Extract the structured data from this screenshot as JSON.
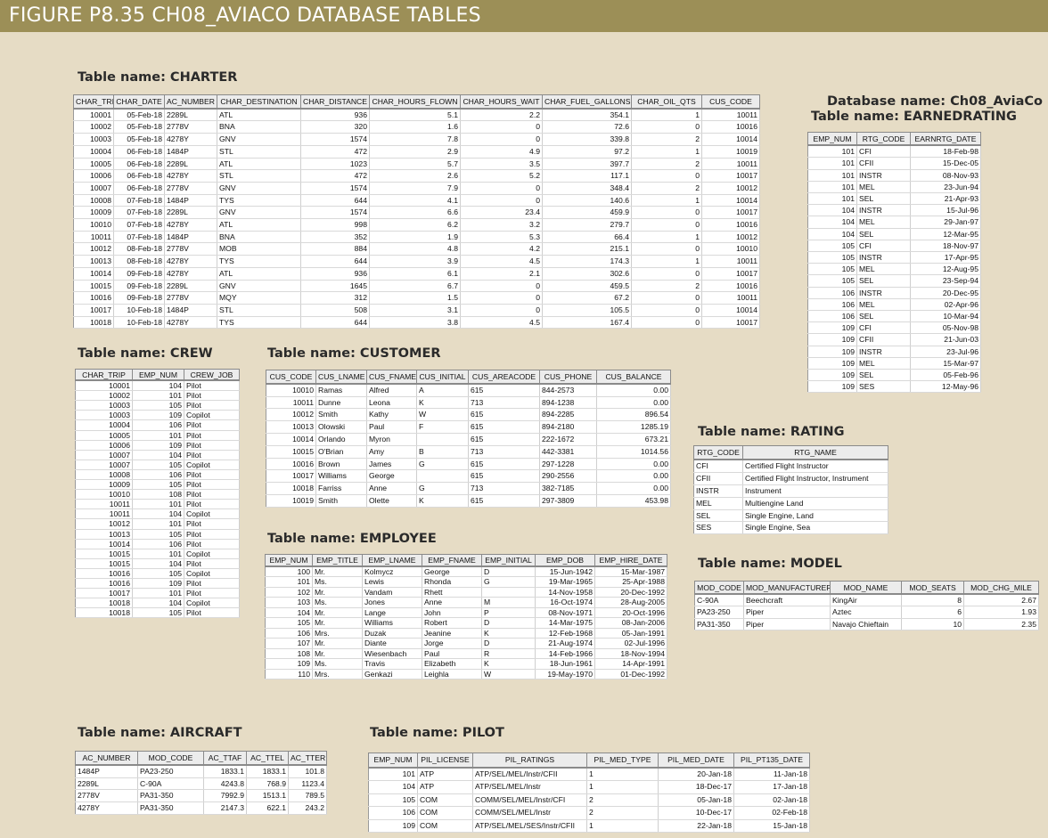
{
  "figure_title": "FIGURE P8.35  CH08_AVIACO DATABASE TABLES",
  "database_name": "Database name: Ch08_AviaCo",
  "tables": {
    "charter": {
      "title": "Table name: CHARTER",
      "columns": [
        "CHAR_TRIP",
        "CHAR_DATE",
        "AC_NUMBER",
        "CHAR_DESTINATION",
        "CHAR_DISTANCE",
        "CHAR_HOURS_FLOWN",
        "CHAR_HOURS_WAIT",
        "CHAR_FUEL_GALLONS",
        "CHAR_OIL_QTS",
        "CUS_CODE"
      ],
      "rows": [
        [
          "10001",
          "05-Feb-18",
          "2289L",
          "ATL",
          "936",
          "5.1",
          "2.2",
          "354.1",
          "1",
          "10011"
        ],
        [
          "10002",
          "05-Feb-18",
          "2778V",
          "BNA",
          "320",
          "1.6",
          "0",
          "72.6",
          "0",
          "10016"
        ],
        [
          "10003",
          "05-Feb-18",
          "4278Y",
          "GNV",
          "1574",
          "7.8",
          "0",
          "339.8",
          "2",
          "10014"
        ],
        [
          "10004",
          "06-Feb-18",
          "1484P",
          "STL",
          "472",
          "2.9",
          "4.9",
          "97.2",
          "1",
          "10019"
        ],
        [
          "10005",
          "06-Feb-18",
          "2289L",
          "ATL",
          "1023",
          "5.7",
          "3.5",
          "397.7",
          "2",
          "10011"
        ],
        [
          "10006",
          "06-Feb-18",
          "4278Y",
          "STL",
          "472",
          "2.6",
          "5.2",
          "117.1",
          "0",
          "10017"
        ],
        [
          "10007",
          "06-Feb-18",
          "2778V",
          "GNV",
          "1574",
          "7.9",
          "0",
          "348.4",
          "2",
          "10012"
        ],
        [
          "10008",
          "07-Feb-18",
          "1484P",
          "TYS",
          "644",
          "4.1",
          "0",
          "140.6",
          "1",
          "10014"
        ],
        [
          "10009",
          "07-Feb-18",
          "2289L",
          "GNV",
          "1574",
          "6.6",
          "23.4",
          "459.9",
          "0",
          "10017"
        ],
        [
          "10010",
          "07-Feb-18",
          "4278Y",
          "ATL",
          "998",
          "6.2",
          "3.2",
          "279.7",
          "0",
          "10016"
        ],
        [
          "10011",
          "07-Feb-18",
          "1484P",
          "BNA",
          "352",
          "1.9",
          "5.3",
          "66.4",
          "1",
          "10012"
        ],
        [
          "10012",
          "08-Feb-18",
          "2778V",
          "MOB",
          "884",
          "4.8",
          "4.2",
          "215.1",
          "0",
          "10010"
        ],
        [
          "10013",
          "08-Feb-18",
          "4278Y",
          "TYS",
          "644",
          "3.9",
          "4.5",
          "174.3",
          "1",
          "10011"
        ],
        [
          "10014",
          "09-Feb-18",
          "4278Y",
          "ATL",
          "936",
          "6.1",
          "2.1",
          "302.6",
          "0",
          "10017"
        ],
        [
          "10015",
          "09-Feb-18",
          "2289L",
          "GNV",
          "1645",
          "6.7",
          "0",
          "459.5",
          "2",
          "10016"
        ],
        [
          "10016",
          "09-Feb-18",
          "2778V",
          "MQY",
          "312",
          "1.5",
          "0",
          "67.2",
          "0",
          "10011"
        ],
        [
          "10017",
          "10-Feb-18",
          "1484P",
          "STL",
          "508",
          "3.1",
          "0",
          "105.5",
          "0",
          "10014"
        ],
        [
          "10018",
          "10-Feb-18",
          "4278Y",
          "TYS",
          "644",
          "3.8",
          "4.5",
          "167.4",
          "0",
          "10017"
        ]
      ]
    },
    "earnedrating": {
      "title": "Table name: EARNEDRATING",
      "columns": [
        "EMP_NUM",
        "RTG_CODE",
        "EARNRTG_DATE"
      ],
      "rows": [
        [
          "101",
          "CFI",
          "18-Feb-98"
        ],
        [
          "101",
          "CFII",
          "15-Dec-05"
        ],
        [
          "101",
          "INSTR",
          "08-Nov-93"
        ],
        [
          "101",
          "MEL",
          "23-Jun-94"
        ],
        [
          "101",
          "SEL",
          "21-Apr-93"
        ],
        [
          "104",
          "INSTR",
          "15-Jul-96"
        ],
        [
          "104",
          "MEL",
          "29-Jan-97"
        ],
        [
          "104",
          "SEL",
          "12-Mar-95"
        ],
        [
          "105",
          "CFI",
          "18-Nov-97"
        ],
        [
          "105",
          "INSTR",
          "17-Apr-95"
        ],
        [
          "105",
          "MEL",
          "12-Aug-95"
        ],
        [
          "105",
          "SEL",
          "23-Sep-94"
        ],
        [
          "106",
          "INSTR",
          "20-Dec-95"
        ],
        [
          "106",
          "MEL",
          "02-Apr-96"
        ],
        [
          "106",
          "SEL",
          "10-Mar-94"
        ],
        [
          "109",
          "CFI",
          "05-Nov-98"
        ],
        [
          "109",
          "CFII",
          "21-Jun-03"
        ],
        [
          "109",
          "INSTR",
          "23-Jul-96"
        ],
        [
          "109",
          "MEL",
          "15-Mar-97"
        ],
        [
          "109",
          "SEL",
          "05-Feb-96"
        ],
        [
          "109",
          "SES",
          "12-May-96"
        ]
      ]
    },
    "crew": {
      "title": "Table name: CREW",
      "columns": [
        "CHAR_TRIP",
        "EMP_NUM",
        "CREW_JOB"
      ],
      "rows": [
        [
          "10001",
          "104",
          "Pilot"
        ],
        [
          "10002",
          "101",
          "Pilot"
        ],
        [
          "10003",
          "105",
          "Pilot"
        ],
        [
          "10003",
          "109",
          "Copilot"
        ],
        [
          "10004",
          "106",
          "Pilot"
        ],
        [
          "10005",
          "101",
          "Pilot"
        ],
        [
          "10006",
          "109",
          "Pilot"
        ],
        [
          "10007",
          "104",
          "Pilot"
        ],
        [
          "10007",
          "105",
          "Copilot"
        ],
        [
          "10008",
          "106",
          "Pilot"
        ],
        [
          "10009",
          "105",
          "Pilot"
        ],
        [
          "10010",
          "108",
          "Pilot"
        ],
        [
          "10011",
          "101",
          "Pilot"
        ],
        [
          "10011",
          "104",
          "Copilot"
        ],
        [
          "10012",
          "101",
          "Pilot"
        ],
        [
          "10013",
          "105",
          "Pilot"
        ],
        [
          "10014",
          "106",
          "Pilot"
        ],
        [
          "10015",
          "101",
          "Copilot"
        ],
        [
          "10015",
          "104",
          "Pilot"
        ],
        [
          "10016",
          "105",
          "Copilot"
        ],
        [
          "10016",
          "109",
          "Pilot"
        ],
        [
          "10017",
          "101",
          "Pilot"
        ],
        [
          "10018",
          "104",
          "Copilot"
        ],
        [
          "10018",
          "105",
          "Pilot"
        ]
      ]
    },
    "customer": {
      "title": "Table name: CUSTOMER",
      "columns": [
        "CUS_CODE",
        "CUS_LNAME",
        "CUS_FNAME",
        "CUS_INITIAL",
        "CUS_AREACODE",
        "CUS_PHONE",
        "CUS_BALANCE"
      ],
      "rows": [
        [
          "10010",
          "Ramas",
          "Alfred",
          "A",
          "615",
          "844-2573",
          "0.00"
        ],
        [
          "10011",
          "Dunne",
          "Leona",
          "K",
          "713",
          "894-1238",
          "0.00"
        ],
        [
          "10012",
          "Smith",
          "Kathy",
          "W",
          "615",
          "894-2285",
          "896.54"
        ],
        [
          "10013",
          "Olowski",
          "Paul",
          "F",
          "615",
          "894-2180",
          "1285.19"
        ],
        [
          "10014",
          "Orlando",
          "Myron",
          "",
          "615",
          "222-1672",
          "673.21"
        ],
        [
          "10015",
          "O'Brian",
          "Amy",
          "B",
          "713",
          "442-3381",
          "1014.56"
        ],
        [
          "10016",
          "Brown",
          "James",
          "G",
          "615",
          "297-1228",
          "0.00"
        ],
        [
          "10017",
          "Williams",
          "George",
          "",
          "615",
          "290-2556",
          "0.00"
        ],
        [
          "10018",
          "Farriss",
          "Anne",
          "G",
          "713",
          "382-7185",
          "0.00"
        ],
        [
          "10019",
          "Smith",
          "Olette",
          "K",
          "615",
          "297-3809",
          "453.98"
        ]
      ]
    },
    "employee": {
      "title": "Table name: EMPLOYEE",
      "columns": [
        "EMP_NUM",
        "EMP_TITLE",
        "EMP_LNAME",
        "EMP_FNAME",
        "EMP_INITIAL",
        "EMP_DOB",
        "EMP_HIRE_DATE"
      ],
      "rows": [
        [
          "100",
          "Mr.",
          "Kolmycz",
          "George",
          "D",
          "15-Jun-1942",
          "15-Mar-1987"
        ],
        [
          "101",
          "Ms.",
          "Lewis",
          "Rhonda",
          "G",
          "19-Mar-1965",
          "25-Apr-1988"
        ],
        [
          "102",
          "Mr.",
          "Vandam",
          "Rhett",
          "",
          "14-Nov-1958",
          "20-Dec-1992"
        ],
        [
          "103",
          "Ms.",
          "Jones",
          "Anne",
          "M",
          "16-Oct-1974",
          "28-Aug-2005"
        ],
        [
          "104",
          "Mr.",
          "Lange",
          "John",
          "P",
          "08-Nov-1971",
          "20-Oct-1996"
        ],
        [
          "105",
          "Mr.",
          "Williams",
          "Robert",
          "D",
          "14-Mar-1975",
          "08-Jan-2006"
        ],
        [
          "106",
          "Mrs.",
          "Duzak",
          "Jeanine",
          "K",
          "12-Feb-1968",
          "05-Jan-1991"
        ],
        [
          "107",
          "Mr.",
          "Diante",
          "Jorge",
          "D",
          "21-Aug-1974",
          "02-Jul-1996"
        ],
        [
          "108",
          "Mr.",
          "Wiesenbach",
          "Paul",
          "R",
          "14-Feb-1966",
          "18-Nov-1994"
        ],
        [
          "109",
          "Ms.",
          "Travis",
          "Elizabeth",
          "K",
          "18-Jun-1961",
          "14-Apr-1991"
        ],
        [
          "110",
          "Mrs.",
          "Genkazi",
          "Leighla",
          "W",
          "19-May-1970",
          "01-Dec-1992"
        ]
      ]
    },
    "rating": {
      "title": "Table name: RATING",
      "columns": [
        "RTG_CODE",
        "RTG_NAME"
      ],
      "rows": [
        [
          "CFI",
          "Certified Flight Instructor"
        ],
        [
          "CFII",
          "Certified Flight Instructor, Instrument"
        ],
        [
          "INSTR",
          "Instrument"
        ],
        [
          "MEL",
          "Multiengine Land"
        ],
        [
          "SEL",
          "Single Engine, Land"
        ],
        [
          "SES",
          "Single Engine, Sea"
        ]
      ]
    },
    "model": {
      "title": "Table name: MODEL",
      "columns": [
        "MOD_CODE",
        "MOD_MANUFACTURER",
        "MOD_NAME",
        "MOD_SEATS",
        "MOD_CHG_MILE"
      ],
      "rows": [
        [
          "C-90A",
          "Beechcraft",
          "KingAir",
          "8",
          "2.67"
        ],
        [
          "PA23-250",
          "Piper",
          "Aztec",
          "6",
          "1.93"
        ],
        [
          "PA31-350",
          "Piper",
          "Navajo Chieftain",
          "10",
          "2.35"
        ]
      ]
    },
    "aircraft": {
      "title": "Table name: AIRCRAFT",
      "columns": [
        "AC_NUMBER",
        "MOD_CODE",
        "AC_TTAF",
        "AC_TTEL",
        "AC_TTER"
      ],
      "rows": [
        [
          "1484P",
          "PA23-250",
          "1833.1",
          "1833.1",
          "101.8"
        ],
        [
          "2289L",
          "C-90A",
          "4243.8",
          "768.9",
          "1123.4"
        ],
        [
          "2778V",
          "PA31-350",
          "7992.9",
          "1513.1",
          "789.5"
        ],
        [
          "4278Y",
          "PA31-350",
          "2147.3",
          "622.1",
          "243.2"
        ]
      ]
    },
    "pilot": {
      "title": "Table name: PILOT",
      "columns": [
        "EMP_NUM",
        "PIL_LICENSE",
        "PIL_RATINGS",
        "PIL_MED_TYPE",
        "PIL_MED_DATE",
        "PIL_PT135_DATE"
      ],
      "rows": [
        [
          "101",
          "ATP",
          "ATP/SEL/MEL/Instr/CFII",
          "1",
          "20-Jan-18",
          "11-Jan-18"
        ],
        [
          "104",
          "ATP",
          "ATP/SEL/MEL/Instr",
          "1",
          "18-Dec-17",
          "17-Jan-18"
        ],
        [
          "105",
          "COM",
          "COMM/SEL/MEL/Instr/CFI",
          "2",
          "05-Jan-18",
          "02-Jan-18"
        ],
        [
          "106",
          "COM",
          "COMM/SEL/MEL/Instr",
          "2",
          "10-Dec-17",
          "02-Feb-18"
        ],
        [
          "109",
          "COM",
          "ATP/SEL/MEL/SES/Instr/CFII",
          "1",
          "22-Jan-18",
          "15-Jan-18"
        ]
      ]
    }
  }
}
